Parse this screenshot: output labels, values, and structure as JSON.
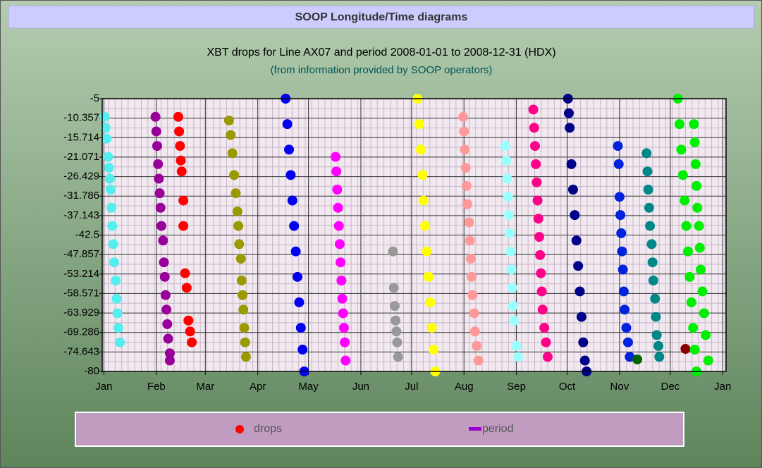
{
  "chart_data": {
    "type": "scatter",
    "title": "SOOP Longitude/Time diagrams",
    "subtitle": "XBT drops for Line AX07 and period 2008-01-01 to 2008-12-31 (HDX)",
    "note": "(from information provided by SOOP operators)",
    "xlim": [
      -1,
      368
    ],
    "xticks": [
      {
        "value": 0,
        "label": "Jan"
      },
      {
        "value": 31,
        "label": "Feb"
      },
      {
        "value": 60,
        "label": "Mar"
      },
      {
        "value": 91,
        "label": "Apr"
      },
      {
        "value": 121,
        "label": "May"
      },
      {
        "value": 152,
        "label": "Jun"
      },
      {
        "value": 182,
        "label": "Jul"
      },
      {
        "value": 213,
        "label": "Aug"
      },
      {
        "value": 244,
        "label": "Sep"
      },
      {
        "value": 274,
        "label": "Oct"
      },
      {
        "value": 305,
        "label": "Nov"
      },
      {
        "value": 335,
        "label": "Dec"
      },
      {
        "value": 366,
        "label": "Jan"
      }
    ],
    "ylim": [
      -80,
      -5
    ],
    "yticks": [
      -5,
      -10.357,
      -15.714,
      -21.071,
      -26.429,
      -31.786,
      -37.143,
      -42.5,
      -47.857,
      -53.214,
      -58.571,
      -63.929,
      -69.286,
      -74.643,
      -80
    ],
    "grid": true,
    "legend": [
      {
        "name": "drops",
        "color": "#ff0000"
      },
      {
        "name": "period",
        "color": "#9900cc"
      }
    ],
    "series": [
      {
        "color": "#55eeee",
        "x": [
          0.5,
          1,
          1.5,
          2.5,
          3,
          3.5,
          4,
          4.5,
          5,
          5.5,
          6,
          7,
          7.5,
          8,
          8.5,
          9.5
        ],
        "values": [
          -10,
          -13,
          -16,
          -21,
          -24,
          -27,
          -30,
          -35,
          -40,
          -45,
          -50,
          -55,
          -60,
          -64,
          -68,
          -72
        ]
      },
      {
        "color": "#990099",
        "x": [
          30.5,
          31,
          31.5,
          32,
          32.5,
          33,
          33.5,
          34,
          35,
          35.5,
          36,
          36.5,
          37,
          37.5,
          38,
          39,
          39
        ],
        "values": [
          -10,
          -14,
          -18,
          -23,
          -27,
          -31,
          -35,
          -40,
          -44,
          -50,
          -54,
          -59,
          -63,
          -67,
          -71,
          -75,
          -77
        ]
      },
      {
        "color": "#ff0000",
        "x": [
          44,
          44.5,
          45,
          45.5,
          46,
          47,
          47,
          48,
          49,
          50,
          51,
          52
        ],
        "values": [
          -10,
          -14,
          -18,
          -22,
          -25,
          -33,
          -40,
          -53,
          -57,
          -66,
          -69,
          -72
        ]
      },
      {
        "color": "#999900",
        "x": [
          74,
          75,
          76,
          77,
          78,
          79,
          79.5,
          80,
          81,
          81.5,
          82,
          82.5,
          83,
          83.5,
          84
        ],
        "values": [
          -11,
          -15,
          -20,
          -26,
          -31,
          -36,
          -40,
          -45,
          -49,
          -55,
          -59,
          -63,
          -68,
          -72,
          -76
        ]
      },
      {
        "color": "#0000ee",
        "x": [
          107.5,
          108.5,
          109.5,
          110.5,
          111.5,
          112.5,
          113.5,
          114.5,
          115.5,
          116.5,
          117.5,
          118.5
        ],
        "values": [
          -5,
          -12,
          -19,
          -26,
          -33,
          -40,
          -47,
          -54,
          -61,
          -68,
          -74,
          -80
        ]
      },
      {
        "color": "#ff00ff",
        "x": [
          137,
          137.5,
          138,
          138.5,
          139,
          139.5,
          140,
          140.5,
          141,
          141.5,
          142,
          142.5,
          143
        ],
        "values": [
          -21,
          -25,
          -30,
          -35,
          -40,
          -45,
          -50,
          -55,
          -60,
          -64,
          -68,
          -72,
          -77
        ]
      },
      {
        "color": "#999999",
        "x": [
          171,
          171.5,
          172,
          172.5,
          173,
          173.5,
          174
        ],
        "values": [
          -47,
          -57,
          -62,
          -66,
          -69,
          -72,
          -76
        ]
      },
      {
        "color": "#ffff00",
        "x": [
          185.5,
          186.5,
          187.5,
          188.5,
          189,
          190,
          191,
          192,
          193,
          194,
          195,
          196
        ],
        "values": [
          -5,
          -12,
          -19,
          -26,
          -33,
          -40,
          -47,
          -54,
          -61,
          -68,
          -74,
          -80
        ]
      },
      {
        "color": "#ff9999",
        "x": [
          212.5,
          213,
          213.5,
          214,
          214.5,
          215,
          216,
          216.5,
          217,
          217.5,
          218,
          219,
          219.5,
          220.5,
          221.5
        ],
        "values": [
          -10,
          -14,
          -19,
          -24,
          -29,
          -34,
          -39,
          -44,
          -49,
          -54,
          -59,
          -64,
          -69,
          -73,
          -77
        ]
      },
      {
        "color": "#99ffff",
        "x": [
          237.5,
          238,
          238.5,
          239,
          239.5,
          240,
          240.5,
          241,
          241.5,
          242,
          242.5,
          244,
          245
        ],
        "values": [
          -18,
          -22,
          -27,
          -32,
          -37,
          -42,
          -47,
          -52,
          -57,
          -62,
          -66,
          -73,
          -76
        ]
      },
      {
        "color": "#ff0088",
        "x": [
          254,
          254.5,
          255,
          255.5,
          256,
          256.5,
          257,
          257.5,
          258,
          258.5,
          259,
          259.5,
          260.5,
          261.5,
          262.5
        ],
        "values": [
          -8,
          -13,
          -18,
          -23,
          -28,
          -33,
          -38,
          -43,
          -48,
          -53,
          -58,
          -63,
          -68,
          -72,
          -76
        ]
      },
      {
        "color": "#000088",
        "x": [
          274.5,
          275,
          275.5,
          276.5,
          277.5,
          278.5,
          279.5,
          280.5,
          281.5,
          282.5,
          283.5,
          284.5,
          285.5
        ],
        "values": [
          -5,
          -9,
          -13,
          -23,
          -30,
          -37,
          -44,
          -51,
          -58,
          -65,
          -72,
          -77,
          -80
        ]
      },
      {
        "color": "#0022dd",
        "x": [
          304,
          304.5,
          305,
          305.5,
          306,
          306.5,
          307,
          307.5,
          308,
          309,
          310,
          311
        ],
        "values": [
          -18,
          -23,
          -32,
          -37,
          -42,
          -47,
          -52,
          -58,
          -63,
          -68,
          -72,
          -76
        ]
      },
      {
        "color": "#006600",
        "x": [
          315.5
        ],
        "values": [
          -76.7
        ]
      },
      {
        "color": "#008888",
        "x": [
          321,
          321.5,
          322,
          322.5,
          323,
          324,
          324.5,
          325,
          326,
          326.5,
          327,
          328,
          328.5
        ],
        "values": [
          -20,
          -25,
          -30,
          -35,
          -40,
          -45,
          -50,
          -55,
          -60,
          -65,
          -70,
          -73,
          -76
        ]
      },
      {
        "color": "#880000",
        "x": [
          344
        ],
        "values": [
          -73.8
        ]
      },
      {
        "color": "#00ee00",
        "x": [
          339.5,
          340.5,
          341.5,
          342.5,
          343.5,
          344.5,
          345.5,
          346.5,
          347.5,
          348.5,
          349.5,
          350.5
        ],
        "values": [
          -5,
          -12,
          -19,
          -26,
          -33,
          -40,
          -47,
          -54,
          -61,
          -68,
          -74,
          -80
        ]
      },
      {
        "color": "#00ee00",
        "x": [
          349,
          349.5,
          350,
          350.5,
          351,
          352,
          352.5,
          353,
          354,
          355,
          356,
          357.5
        ],
        "values": [
          -12,
          -17,
          -23,
          -29,
          -35,
          -40,
          -46,
          -52,
          -58,
          -64,
          -70,
          -77
        ]
      }
    ]
  }
}
